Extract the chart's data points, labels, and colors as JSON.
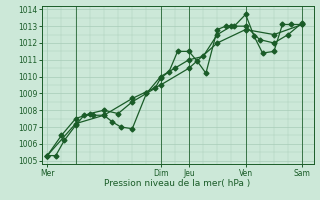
{
  "xlabel": "Pression niveau de la mer( hPa )",
  "ylim": [
    1004.8,
    1014.2
  ],
  "yticks": [
    1005,
    1006,
    1007,
    1008,
    1009,
    1010,
    1011,
    1012,
    1013,
    1014
  ],
  "xtick_positions": [
    0,
    4,
    5,
    7,
    9
  ],
  "xtick_labels": [
    "Mer",
    "Dim",
    "Jeu",
    "Ven",
    "Sam"
  ],
  "bg_color": "#cce8d8",
  "grid_color": "#a8ccb8",
  "line_color": "#1a5c28",
  "marker": "D",
  "markersize": 2.5,
  "linewidth": 0.9,
  "series1_x": [
    0,
    0.3,
    0.6,
    1.0,
    1.3,
    1.6,
    2.0,
    2.3,
    2.6,
    3.0,
    3.5,
    3.8,
    4.0,
    4.3,
    4.6,
    5.0,
    5.3,
    5.6,
    6.0,
    6.3,
    6.6,
    7.0,
    7.3,
    7.6,
    8.0,
    8.3,
    8.6,
    9.0
  ],
  "series1_y": [
    1005.3,
    1005.3,
    1006.2,
    1007.1,
    1007.7,
    1007.7,
    1007.7,
    1007.3,
    1007.0,
    1006.9,
    1009.0,
    1009.3,
    1009.9,
    1010.3,
    1011.5,
    1011.5,
    1010.9,
    1010.2,
    1012.8,
    1013.0,
    1013.0,
    1013.7,
    1012.4,
    1011.4,
    1011.5,
    1013.1,
    1013.1,
    1013.1
  ],
  "series2_x": [
    0,
    0.5,
    1.0,
    1.5,
    2.0,
    2.5,
    3.0,
    3.5,
    4.0,
    4.5,
    5.0,
    5.5,
    6.0,
    6.5,
    7.0,
    7.5,
    8.0,
    8.5,
    9.0
  ],
  "series2_y": [
    1005.3,
    1006.5,
    1007.5,
    1007.8,
    1008.0,
    1007.8,
    1008.5,
    1009.0,
    1010.0,
    1010.5,
    1011.0,
    1011.2,
    1012.5,
    1013.0,
    1013.0,
    1012.2,
    1012.0,
    1012.5,
    1013.2
  ],
  "series3_x": [
    0,
    1.0,
    2.0,
    3.0,
    4.0,
    5.0,
    6.0,
    7.0,
    8.0,
    9.0
  ],
  "series3_y": [
    1005.3,
    1007.2,
    1007.7,
    1008.7,
    1009.5,
    1010.5,
    1012.0,
    1012.8,
    1012.5,
    1013.1
  ],
  "vline_positions": [
    1.0,
    4.0,
    5.0,
    7.0,
    9.0
  ]
}
